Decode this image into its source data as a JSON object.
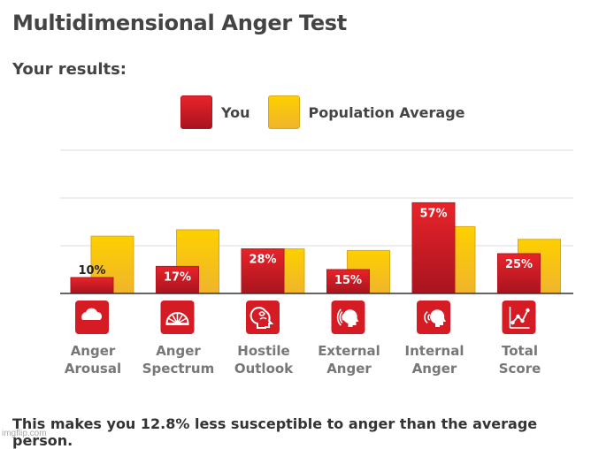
{
  "title": "Multidimensional Anger Test",
  "subtitle": "Your results:",
  "legend": {
    "you": "You",
    "population": "Population Average"
  },
  "colors": {
    "you_top": "#e8232a",
    "you_bottom": "#a8141f",
    "you_border": "#b51620",
    "pop_top": "#fdd000",
    "pop_bottom": "#f0b42c",
    "pop_border": "#d9a91a",
    "icon_bg": "#d51c24",
    "gridline": "#dddddd",
    "axis": "#333333"
  },
  "chart_data": {
    "type": "bar",
    "categories": [
      [
        "Anger",
        "Arousal"
      ],
      [
        "Anger",
        "Spectrum"
      ],
      [
        "Hostile",
        "Outlook"
      ],
      [
        "External",
        "Anger"
      ],
      [
        "Internal",
        "Anger"
      ],
      [
        "Total",
        "Score"
      ]
    ],
    "icons": [
      "storm-cloud-icon",
      "spectrum-fan-icon",
      "hostile-head-icon",
      "external-voice-icon",
      "internal-voice-icon",
      "trend-chart-icon"
    ],
    "series": [
      {
        "name": "You",
        "values": [
          10,
          17,
          28,
          15,
          57,
          25
        ],
        "labels": [
          "10%",
          "17%",
          "28%",
          "15%",
          "57%",
          "25%"
        ]
      },
      {
        "name": "Population Average",
        "values": [
          36,
          40,
          28,
          27,
          42,
          34
        ]
      }
    ],
    "ylim": [
      0,
      90
    ],
    "grid": true,
    "legend_position": "top-center"
  },
  "footer": "This makes you 12.8% less susceptible to anger than the average person.",
  "watermark": "imgflip.com"
}
